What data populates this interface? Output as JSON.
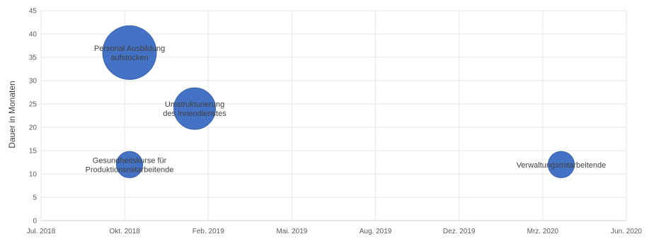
{
  "chart_data": {
    "type": "bubble",
    "title": "",
    "xlabel": "",
    "ylabel": "Dauer in Monaten",
    "xlim": [
      "2018-07-01",
      "2020-06-01"
    ],
    "ylim": [
      0,
      45
    ],
    "x_ticks": [
      "Jul. 2018",
      "Okt. 2018",
      "Feb. 2019",
      "Mai. 2019",
      "Aug. 2019",
      "Dez. 2019",
      "Mrz. 2020",
      "Jun. 2020"
    ],
    "y_ticks": [
      "0",
      "5",
      "10",
      "15",
      "20",
      "25",
      "30",
      "35",
      "40",
      "45"
    ],
    "grid": true,
    "bubble_color": "#4472c4",
    "points": [
      {
        "label": "Personal Ausbildung aufstocken",
        "x": "2018-10-15",
        "y": 36,
        "size": 100
      },
      {
        "label": "Umstrukturierung des Innendienstes",
        "x": "2019-01-01",
        "y": 24,
        "size": 60
      },
      {
        "label": "Gesundheitskurse für Produktionsmitarbeitende",
        "x": "2018-10-15",
        "y": 12,
        "size": 24
      },
      {
        "label": "Verwaltungsmitarbeitende",
        "x": "2020-03-15",
        "y": 12,
        "size": 24
      }
    ]
  }
}
